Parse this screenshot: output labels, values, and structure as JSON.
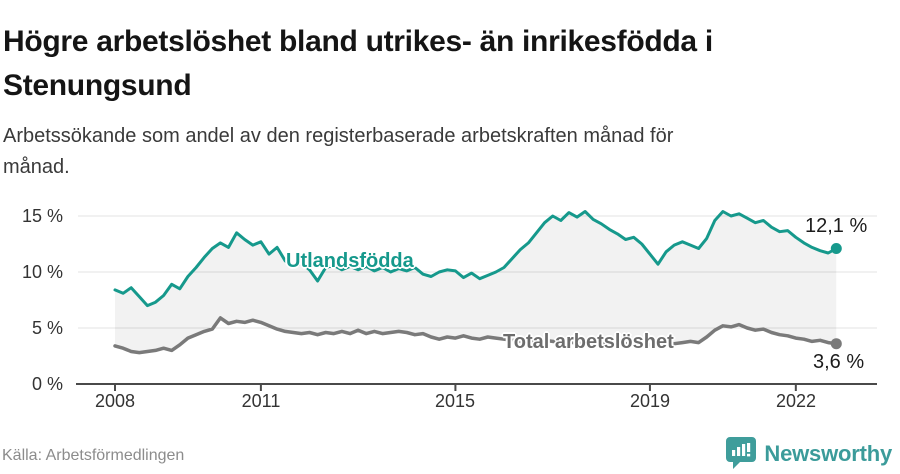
{
  "header": {
    "title": "Högre arbetslöshet bland utrikes- än inrikesfödda i Stenungsund",
    "subtitle": "Arbetssökande som andel av den registerbaserade arbetskraften månad för månad."
  },
  "footer": {
    "source": "Källa: Arbetsförmedlingen",
    "brand": "Newsworthy"
  },
  "colors": {
    "accent_teal": "#16998c",
    "line_gray": "#7a7a7a",
    "brand_teal": "#3b9b9a",
    "axis": "#4a4a4a",
    "grid": "#e3e3e3",
    "band": "rgba(0,0,0,0.05)"
  },
  "chart_data": {
    "type": "line",
    "title": "Högre arbetslöshet bland utrikes- än inrikesfödda i Stenungsund",
    "subtitle": "Arbetssökande som andel av den registerbaserade arbetskraften månad för månad.",
    "x_start_year": 2008,
    "x_step_months": 2,
    "ylim": [
      0,
      16
    ],
    "grid": true,
    "band_between_series": true,
    "ytick_values": [
      0,
      5,
      10,
      15
    ],
    "ytick_labels": [
      "0 %",
      "5 %",
      "10 %",
      "15 %"
    ],
    "xtick_years": [
      2008,
      2011,
      2015,
      2019,
      2022
    ],
    "xtick_labels": [
      "2008",
      "2011",
      "2015",
      "2019",
      "2022"
    ],
    "series": [
      {
        "name": "Utlandsfödda",
        "color": "#16998c",
        "end_label": "12,1 %",
        "end_value": 12.1,
        "values": [
          8.4,
          8.1,
          8.6,
          7.8,
          7.0,
          7.3,
          7.9,
          8.9,
          8.5,
          9.6,
          10.4,
          11.3,
          12.1,
          12.6,
          12.2,
          13.5,
          12.9,
          12.4,
          12.7,
          11.6,
          12.2,
          11.0,
          10.4,
          10.8,
          10.2,
          9.2,
          10.4,
          10.6,
          10.2,
          10.5,
          10.2,
          10.5,
          10.1,
          10.4,
          10.0,
          10.3,
          10.1,
          10.4,
          9.8,
          9.6,
          10.0,
          10.2,
          10.1,
          9.5,
          9.9,
          9.4,
          9.7,
          10.0,
          10.4,
          11.2,
          12.0,
          12.6,
          13.5,
          14.4,
          15.0,
          14.6,
          15.3,
          14.9,
          15.4,
          14.7,
          14.3,
          13.8,
          13.4,
          12.9,
          13.1,
          12.5,
          11.6,
          10.7,
          11.8,
          12.4,
          12.7,
          12.4,
          12.1,
          13.0,
          14.6,
          15.4,
          15.0,
          15.2,
          14.8,
          14.4,
          14.6,
          14.0,
          13.6,
          13.7,
          13.1,
          12.6,
          12.2,
          11.9,
          11.7,
          12.1
        ]
      },
      {
        "name": "Total arbetslöshet",
        "color": "#7a7a7a",
        "end_label": "3,6 %",
        "end_value": 3.6,
        "values": [
          3.4,
          3.2,
          2.9,
          2.8,
          2.9,
          3.0,
          3.2,
          3.0,
          3.5,
          4.1,
          4.4,
          4.7,
          4.9,
          5.9,
          5.4,
          5.6,
          5.5,
          5.7,
          5.5,
          5.2,
          4.9,
          4.7,
          4.6,
          4.5,
          4.6,
          4.4,
          4.6,
          4.5,
          4.7,
          4.5,
          4.8,
          4.5,
          4.7,
          4.5,
          4.6,
          4.7,
          4.6,
          4.4,
          4.5,
          4.2,
          4.0,
          4.2,
          4.1,
          4.3,
          4.1,
          4.0,
          4.2,
          4.1,
          4.0,
          3.9,
          3.8,
          3.9,
          3.8,
          3.9,
          3.8,
          3.7,
          3.8,
          3.6,
          3.7,
          3.6,
          3.7,
          3.6,
          3.5,
          3.6,
          3.5,
          3.6,
          3.5,
          3.6,
          3.7,
          3.6,
          3.7,
          3.8,
          3.7,
          4.2,
          4.8,
          5.2,
          5.1,
          5.3,
          5.0,
          4.8,
          4.9,
          4.6,
          4.4,
          4.3,
          4.1,
          4.0,
          3.8,
          3.9,
          3.7,
          3.6
        ]
      }
    ]
  }
}
